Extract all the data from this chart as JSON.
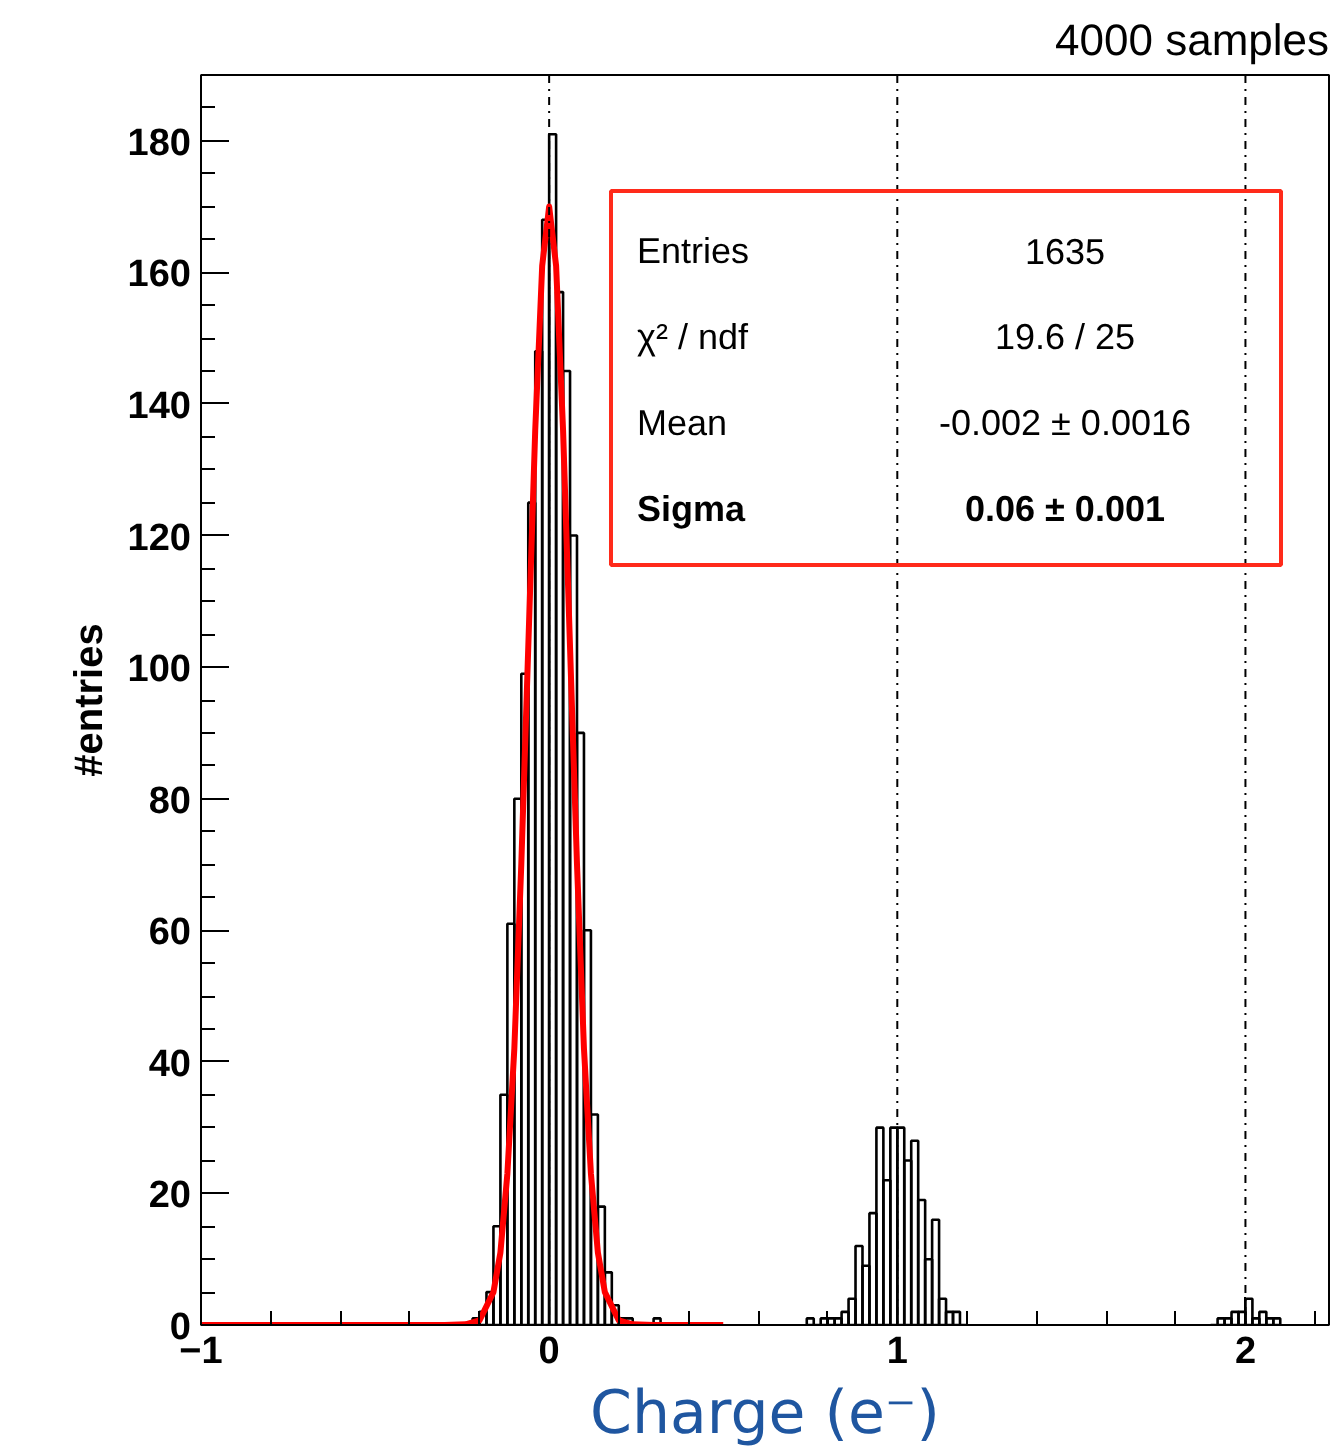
{
  "chart_data": {
    "type": "histogram",
    "title": "4000 samples",
    "xlabel": "Charge (e⁻)",
    "ylabel": "#entries",
    "xlim": [
      -1,
      2.24
    ],
    "ylim": [
      0,
      190
    ],
    "xticks": [
      -1,
      0,
      1,
      2
    ],
    "yticks": [
      0,
      20,
      40,
      60,
      80,
      100,
      120,
      140,
      160,
      180
    ],
    "grid": false,
    "series": [
      {
        "color": "#000000",
        "bins": [
          -0.26,
          -0.24,
          -0.22,
          -0.2,
          -0.18,
          -0.16,
          -0.14,
          -0.12,
          -0.1,
          -0.08,
          -0.06,
          -0.04,
          -0.02,
          0,
          0.02,
          0.04,
          0.06,
          0.08,
          0.1,
          0.12,
          0.14,
          0.16,
          0.18,
          0.2,
          0.22,
          0.24,
          0.26,
          0.28,
          0.3,
          0.32,
          0.34
        ],
        "values": [
          0,
          0,
          1,
          2,
          5,
          15,
          35,
          61,
          80,
          99,
          125,
          148,
          168,
          181,
          157,
          145,
          120,
          90,
          60,
          32,
          18,
          8,
          3,
          1,
          1,
          0,
          0,
          0,
          1,
          0
        ]
      },
      {
        "color": "#000000",
        "bins": [
          0.74,
          0.76,
          0.78,
          0.8,
          0.82,
          0.84,
          0.86,
          0.88,
          0.9,
          0.92,
          0.94,
          0.96,
          0.98,
          1.0,
          1.02,
          1.04,
          1.06,
          1.08,
          1.1,
          1.12,
          1.14,
          1.16,
          1.18,
          1.2
        ],
        "values": [
          1,
          0,
          1,
          1,
          1,
          2,
          4,
          12,
          9,
          17,
          30,
          22,
          30,
          30,
          25,
          28,
          19,
          10,
          16,
          4,
          2,
          2,
          0
        ]
      },
      {
        "color": "#000000",
        "bins": [
          1.9,
          1.92,
          1.94,
          1.96,
          1.98,
          2.0,
          2.02,
          2.04,
          2.06,
          2.08,
          2.1
        ],
        "values": [
          0,
          1,
          1,
          2,
          2,
          4,
          1,
          2,
          1,
          1
        ]
      },
      {
        "type": "line",
        "color": "#ff0000",
        "x": [
          -1,
          -0.5,
          -0.3,
          -0.24,
          -0.2,
          -0.16,
          -0.14,
          -0.12,
          -0.1,
          -0.08,
          -0.06,
          -0.04,
          -0.02,
          0,
          0.02,
          0.04,
          0.06,
          0.08,
          0.1,
          0.12,
          0.14,
          0.16,
          0.2,
          0.24,
          0.3,
          0.5
        ],
        "values": [
          0,
          0,
          0,
          0.1,
          0.7,
          5,
          11,
          23,
          42,
          70,
          103,
          136,
          161,
          170,
          161,
          136,
          103,
          70,
          42,
          23,
          11,
          5,
          0.7,
          0.1,
          0,
          0
        ]
      }
    ],
    "ref_lines": [
      {
        "axis": "x",
        "value": 0,
        "color": "#000000",
        "line_style": "dashed"
      },
      {
        "axis": "x",
        "value": 1,
        "color": "#000000",
        "line_style": "dashed"
      },
      {
        "axis": "x",
        "value": 2,
        "color": "#000000",
        "line_style": "dashed"
      }
    ],
    "annotations": [
      "Entries",
      "1635",
      "χ² / ndf",
      "19.6 / 25",
      "Mean",
      "-0.002 ± 0.0016",
      "Sigma",
      "0.06 ± 0.001"
    ]
  }
}
